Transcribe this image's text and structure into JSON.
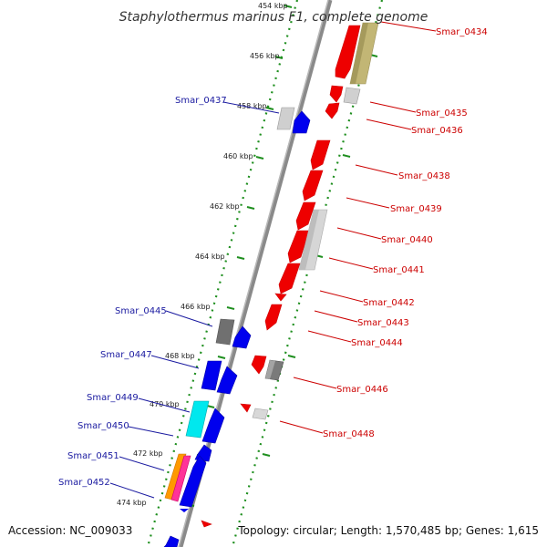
{
  "title": "Staphylothermus marinus F1, complete genome",
  "footer": {
    "accession": "Accession: NC_009033",
    "summary": "Topology: circular; Length: 1,570,485 bp; Genes: 1,615"
  },
  "ticks": [
    {
      "label": "454 kbp"
    },
    {
      "label": "456 kbp"
    },
    {
      "label": "458 kbp"
    },
    {
      "label": "460 kbp"
    },
    {
      "label": "462 kbp"
    },
    {
      "label": "464 kbp"
    },
    {
      "label": "466 kbp"
    },
    {
      "label": "468 kbp"
    },
    {
      "label": "470 kbp"
    },
    {
      "label": "472 kbp"
    },
    {
      "label": "474 kbp"
    }
  ],
  "genes_left": [
    {
      "name": "Smar_0437"
    },
    {
      "name": "Smar_0445"
    },
    {
      "name": "Smar_0447"
    },
    {
      "name": "Smar_0449"
    },
    {
      "name": "Smar_0450"
    },
    {
      "name": "Smar_0451"
    },
    {
      "name": "Smar_0452"
    }
  ],
  "genes_right": [
    {
      "name": "Smar_0434"
    },
    {
      "name": "Smar_0435"
    },
    {
      "name": "Smar_0436"
    },
    {
      "name": "Smar_0438"
    },
    {
      "name": "Smar_0439"
    },
    {
      "name": "Smar_0440"
    },
    {
      "name": "Smar_0441"
    },
    {
      "name": "Smar_0442"
    },
    {
      "name": "Smar_0443"
    },
    {
      "name": "Smar_0444"
    },
    {
      "name": "Smar_0446"
    },
    {
      "name": "Smar_0448"
    }
  ],
  "colors": {
    "backbone": "#777777",
    "guide_dots": "#1f8f1f",
    "forward": "#ff0000",
    "reverse": "#0000ff",
    "label_left": "#1a1aa0",
    "label_right": "#cc0000"
  }
}
